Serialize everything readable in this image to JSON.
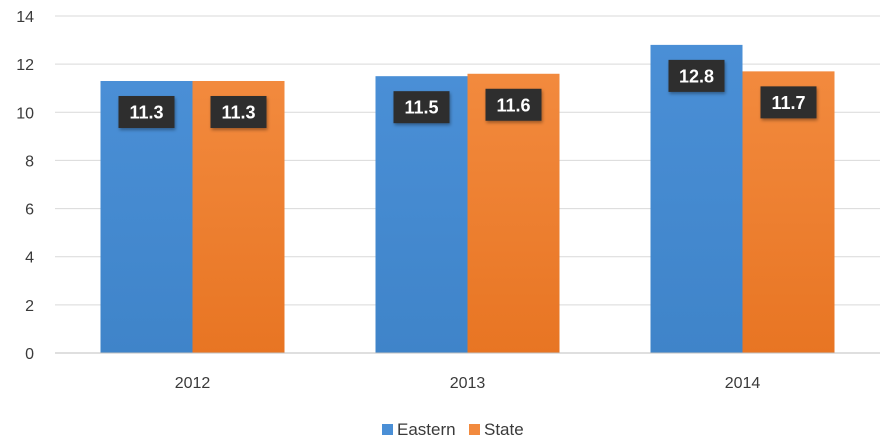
{
  "chart_data": {
    "type": "bar",
    "title": "",
    "xlabel": "",
    "ylabel": "",
    "categories": [
      "2012",
      "2013",
      "2014"
    ],
    "series": [
      {
        "name": "Eastern",
        "values": [
          11.3,
          11.5,
          12.8
        ],
        "color": "#4a8fd6",
        "color_dark": "#3f84c9"
      },
      {
        "name": "State",
        "values": [
          11.3,
          11.6,
          11.7
        ],
        "color": "#f28a3e",
        "color_dark": "#e87523"
      }
    ],
    "ylim": [
      0,
      14
    ],
    "yticks": [
      "0",
      "2",
      "4",
      "6",
      "8",
      "10",
      "12",
      "14"
    ],
    "data_labels": [
      [
        "11.3",
        "11.5",
        "12.8"
      ],
      [
        "11.3",
        "11.6",
        "11.7"
      ]
    ],
    "grid": true,
    "legend_position": "bottom-center",
    "label_box_color": "#2e2e2e",
    "grid_color": "#d9d9d9"
  }
}
